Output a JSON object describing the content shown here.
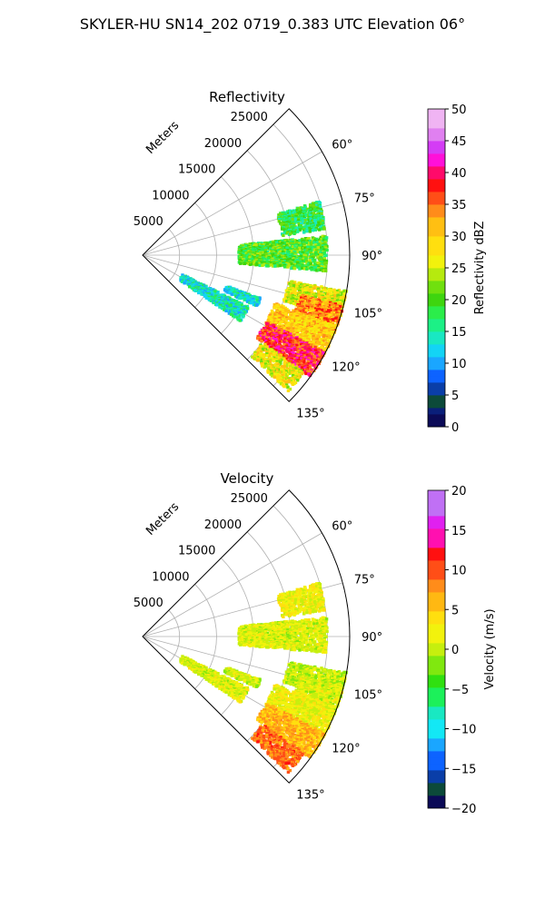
{
  "figure": {
    "suptitle": "SKYLER-HU  SN14_202  0719_0.383 UTC Elevation 06°"
  },
  "chart_data": [
    {
      "type": "heatmap",
      "projection": "polar-sector",
      "title": "Reflectivity",
      "radial_label": "Meters",
      "radial_ticks": [
        5000,
        10000,
        15000,
        20000,
        25000
      ],
      "radial_tick_labels": [
        "5000",
        "10000",
        "15000",
        "20000",
        "25000"
      ],
      "rlim": [
        0,
        28000
      ],
      "azimuth_ticks": [
        60,
        75,
        90,
        105,
        120,
        135
      ],
      "azimuth_tick_labels": [
        "60°",
        "75°",
        "90°",
        "105°",
        "120°",
        "135°"
      ],
      "azimuth_range_deg": [
        45,
        135
      ],
      "grid": true,
      "colorbar": {
        "label": "Reflectivity dBZ",
        "range": [
          0,
          50
        ],
        "ticks": [
          0,
          5,
          10,
          15,
          20,
          25,
          30,
          35,
          40,
          45,
          50
        ],
        "tick_labels": [
          "0",
          "5",
          "10",
          "15",
          "20",
          "25",
          "30",
          "35",
          "40",
          "45",
          "50"
        ]
      },
      "echo_regions": [
        {
          "az": [
            73,
            82
          ],
          "r": [
            19000,
            25000
          ],
          "value": 18
        },
        {
          "az": [
            84,
            95
          ],
          "r": [
            13000,
            25000
          ],
          "value": 20
        },
        {
          "az": [
            100,
            108
          ],
          "r": [
            20000,
            28000
          ],
          "value": 26
        },
        {
          "az": [
            104,
            114
          ],
          "r": [
            22000,
            28000
          ],
          "value": 34
        },
        {
          "az": [
            110,
            120
          ],
          "r": [
            19000,
            28000
          ],
          "value": 30
        },
        {
          "az": [
            118,
            126
          ],
          "r": [
            19000,
            28000
          ],
          "value": 38
        },
        {
          "az": [
            126,
            133
          ],
          "r": [
            20000,
            27000
          ],
          "value": 27
        },
        {
          "az": [
            116,
            124
          ],
          "r": [
            6000,
            16000
          ],
          "value": 14
        },
        {
          "az": [
            110,
            114
          ],
          "r": [
            12000,
            17000
          ],
          "value": 14
        }
      ]
    },
    {
      "type": "heatmap",
      "projection": "polar-sector",
      "title": "Velocity",
      "radial_label": "Meters",
      "radial_ticks": [
        5000,
        10000,
        15000,
        20000,
        25000
      ],
      "radial_tick_labels": [
        "5000",
        "10000",
        "15000",
        "20000",
        "25000"
      ],
      "rlim": [
        0,
        28000
      ],
      "azimuth_ticks": [
        60,
        75,
        90,
        105,
        120,
        135
      ],
      "azimuth_tick_labels": [
        "60°",
        "75°",
        "90°",
        "105°",
        "120°",
        "135°"
      ],
      "azimuth_range_deg": [
        45,
        135
      ],
      "grid": true,
      "colorbar": {
        "label": "Velocity (m/s)",
        "range": [
          -20,
          20
        ],
        "ticks": [
          -20,
          -15,
          -10,
          -5,
          0,
          5,
          10,
          15,
          20
        ],
        "tick_labels": [
          "−20",
          "−15",
          "−10",
          "−5",
          "0",
          "5",
          "10",
          "15",
          "20"
        ]
      },
      "echo_regions": [
        {
          "az": [
            73,
            82
          ],
          "r": [
            19000,
            25000
          ],
          "value": 2
        },
        {
          "az": [
            84,
            95
          ],
          "r": [
            13000,
            25000
          ],
          "value": 1
        },
        {
          "az": [
            100,
            108
          ],
          "r": [
            20000,
            28000
          ],
          "value": 0
        },
        {
          "az": [
            104,
            114
          ],
          "r": [
            22000,
            28000
          ],
          "value": 1
        },
        {
          "az": [
            110,
            120
          ],
          "r": [
            19000,
            28000
          ],
          "value": 2
        },
        {
          "az": [
            118,
            126
          ],
          "r": [
            19000,
            28000
          ],
          "value": 6
        },
        {
          "az": [
            126,
            133
          ],
          "r": [
            20000,
            27000
          ],
          "value": 9
        },
        {
          "az": [
            116,
            124
          ],
          "r": [
            6000,
            16000
          ],
          "value": 1
        },
        {
          "az": [
            110,
            114
          ],
          "r": [
            12000,
            17000
          ],
          "value": 1
        }
      ]
    }
  ]
}
